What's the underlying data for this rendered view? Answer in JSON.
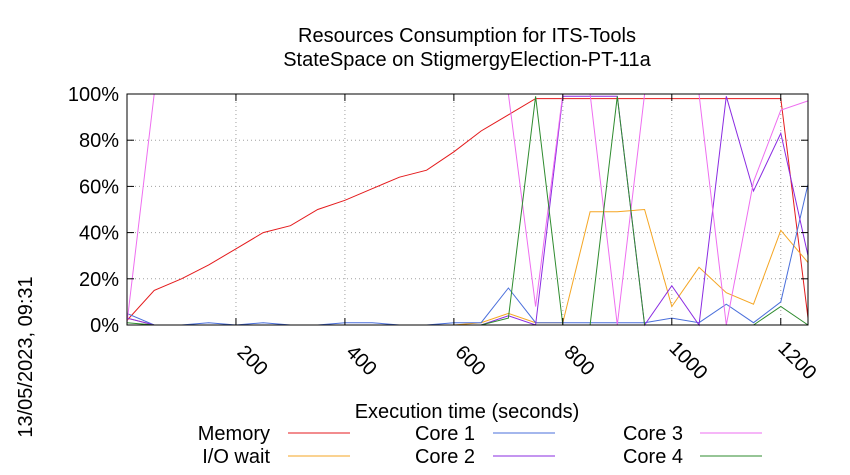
{
  "chart_data": {
    "type": "line",
    "title": [
      "Resources Consumption for ITS-Tools",
      "StateSpace on StigmergyElection-PT-11a"
    ],
    "xlabel": "Execution time (seconds)",
    "ylabel": "",
    "side_label": "13/05/2023, 09:31",
    "xlim": [
      0,
      1250
    ],
    "ylim": [
      0,
      100
    ],
    "x_ticks": [
      200,
      400,
      600,
      800,
      1000,
      1200
    ],
    "y_ticks": [
      0,
      20,
      40,
      60,
      80,
      100
    ],
    "y_tick_labels": [
      "0%",
      "20%",
      "40%",
      "60%",
      "80%",
      "100%"
    ],
    "grid": true,
    "legend_position": "bottom",
    "series": [
      {
        "name": "Memory",
        "color": "#e41a1c",
        "points": [
          [
            0,
            2
          ],
          [
            50,
            15
          ],
          [
            100,
            20
          ],
          [
            150,
            26
          ],
          [
            200,
            33
          ],
          [
            250,
            40
          ],
          [
            300,
            43
          ],
          [
            350,
            50
          ],
          [
            400,
            54
          ],
          [
            450,
            59
          ],
          [
            500,
            64
          ],
          [
            550,
            67
          ],
          [
            600,
            75
          ],
          [
            650,
            84
          ],
          [
            700,
            91
          ],
          [
            750,
            98
          ],
          [
            800,
            98
          ],
          [
            850,
            98
          ],
          [
            900,
            98
          ],
          [
            950,
            98
          ],
          [
            1000,
            98
          ],
          [
            1050,
            98
          ],
          [
            1100,
            98
          ],
          [
            1150,
            98
          ],
          [
            1200,
            98
          ],
          [
            1250,
            3
          ]
        ]
      },
      {
        "name": "I/O wait",
        "color": "#f5a623",
        "points": [
          [
            0,
            3
          ],
          [
            50,
            0
          ],
          [
            100,
            0
          ],
          [
            150,
            0
          ],
          [
            200,
            0
          ],
          [
            250,
            0
          ],
          [
            300,
            0
          ],
          [
            350,
            0
          ],
          [
            400,
            0
          ],
          [
            450,
            0
          ],
          [
            500,
            0
          ],
          [
            550,
            0
          ],
          [
            600,
            0
          ],
          [
            650,
            1
          ],
          [
            700,
            5
          ],
          [
            750,
            1
          ],
          [
            800,
            1
          ],
          [
            850,
            49
          ],
          [
            900,
            49
          ],
          [
            950,
            50
          ],
          [
            1000,
            8
          ],
          [
            1050,
            25
          ],
          [
            1100,
            14
          ],
          [
            1150,
            9
          ],
          [
            1200,
            41
          ],
          [
            1250,
            27
          ]
        ]
      },
      {
        "name": "Core 1",
        "color": "#4a6fdb",
        "points": [
          [
            0,
            5
          ],
          [
            50,
            0
          ],
          [
            100,
            0
          ],
          [
            150,
            1
          ],
          [
            200,
            0
          ],
          [
            250,
            1
          ],
          [
            300,
            0
          ],
          [
            350,
            0
          ],
          [
            400,
            1
          ],
          [
            450,
            1
          ],
          [
            500,
            0
          ],
          [
            550,
            0
          ],
          [
            600,
            1
          ],
          [
            650,
            1
          ],
          [
            700,
            16
          ],
          [
            750,
            1
          ],
          [
            800,
            1
          ],
          [
            850,
            1
          ],
          [
            900,
            1
          ],
          [
            950,
            1
          ],
          [
            1000,
            3
          ],
          [
            1050,
            1
          ],
          [
            1100,
            9
          ],
          [
            1150,
            1
          ],
          [
            1200,
            10
          ],
          [
            1250,
            61
          ]
        ]
      },
      {
        "name": "Core 2",
        "color": "#8a2be2",
        "points": [
          [
            0,
            3
          ],
          [
            50,
            0
          ],
          [
            100,
            0
          ],
          [
            150,
            0
          ],
          [
            200,
            0
          ],
          [
            250,
            0
          ],
          [
            300,
            0
          ],
          [
            350,
            0
          ],
          [
            400,
            0
          ],
          [
            450,
            0
          ],
          [
            500,
            0
          ],
          [
            550,
            0
          ],
          [
            600,
            0
          ],
          [
            650,
            0
          ],
          [
            700,
            4
          ],
          [
            750,
            0
          ],
          [
            800,
            99
          ],
          [
            850,
            99
          ],
          [
            900,
            99
          ],
          [
            950,
            0
          ],
          [
            1000,
            17
          ],
          [
            1050,
            0
          ],
          [
            1100,
            99
          ],
          [
            1150,
            58
          ],
          [
            1200,
            83
          ],
          [
            1250,
            30
          ]
        ]
      },
      {
        "name": "Core 3",
        "color": "#ee6ef0",
        "points": [
          [
            0,
            1
          ],
          [
            50,
            100
          ],
          [
            100,
            100
          ],
          [
            150,
            100
          ],
          [
            200,
            100
          ],
          [
            250,
            100
          ],
          [
            300,
            100
          ],
          [
            350,
            100
          ],
          [
            400,
            100
          ],
          [
            450,
            100
          ],
          [
            500,
            100
          ],
          [
            550,
            100
          ],
          [
            600,
            100
          ],
          [
            650,
            100
          ],
          [
            700,
            100
          ],
          [
            750,
            8
          ],
          [
            800,
            100
          ],
          [
            850,
            100
          ],
          [
            900,
            0
          ],
          [
            950,
            100
          ],
          [
            1000,
            100
          ],
          [
            1050,
            100
          ],
          [
            1100,
            0
          ],
          [
            1150,
            62
          ],
          [
            1200,
            93
          ],
          [
            1250,
            97
          ]
        ]
      },
      {
        "name": "Core 4",
        "color": "#2e8b2e",
        "points": [
          [
            0,
            1
          ],
          [
            50,
            0
          ],
          [
            100,
            0
          ],
          [
            150,
            0
          ],
          [
            200,
            0
          ],
          [
            250,
            0
          ],
          [
            300,
            0
          ],
          [
            350,
            0
          ],
          [
            400,
            0
          ],
          [
            450,
            0
          ],
          [
            500,
            0
          ],
          [
            550,
            0
          ],
          [
            600,
            0
          ],
          [
            650,
            0
          ],
          [
            700,
            3
          ],
          [
            750,
            99
          ],
          [
            800,
            0
          ],
          [
            850,
            0
          ],
          [
            900,
            99
          ],
          [
            950,
            0
          ],
          [
            1000,
            0
          ],
          [
            1050,
            0
          ],
          [
            1100,
            0
          ],
          [
            1150,
            0
          ],
          [
            1200,
            8
          ],
          [
            1250,
            0
          ]
        ]
      }
    ]
  }
}
